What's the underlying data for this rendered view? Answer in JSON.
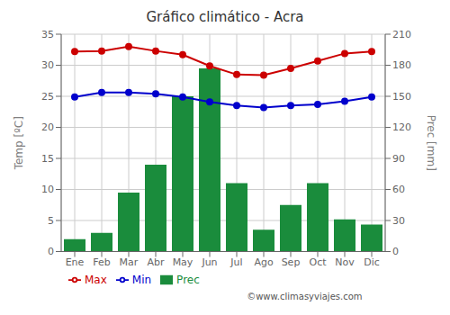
{
  "chart_data": {
    "type": "bar",
    "title": "Gráfico climático - Acra",
    "categories": [
      "Ene",
      "Feb",
      "Mar",
      "Abr",
      "May",
      "Jun",
      "Jul",
      "Ago",
      "Sep",
      "Oct",
      "Nov",
      "Dic"
    ],
    "series": [
      {
        "name": "Prec",
        "type": "bar",
        "axis": "y2",
        "color": "#1a8c3c",
        "values": [
          12,
          18,
          57,
          84,
          150,
          177,
          66,
          21,
          45,
          66,
          31,
          26
        ]
      },
      {
        "name": "Min",
        "type": "line",
        "color": "#0000cc",
        "marker": "circle",
        "values": [
          24.9,
          25.6,
          25.6,
          25.4,
          24.9,
          24.1,
          23.5,
          23.2,
          23.5,
          23.7,
          24.2,
          24.9
        ]
      },
      {
        "name": "Max",
        "type": "line",
        "color": "#cc0000",
        "marker": "circle",
        "values": [
          32.2,
          32.3,
          33.0,
          32.3,
          31.7,
          29.9,
          28.5,
          28.4,
          29.5,
          30.7,
          31.9,
          32.2
        ]
      }
    ],
    "ylabel": "Temp [ºC]",
    "y2label": "Prec [mm]",
    "ylim": [
      0,
      35
    ],
    "yticks": [
      0,
      5,
      10,
      15,
      20,
      25,
      30,
      35
    ],
    "y2lim": [
      0,
      210
    ],
    "y2ticks": [
      0,
      30,
      60,
      90,
      120,
      150,
      180,
      210
    ],
    "grid": true,
    "legend": "bottom",
    "annotations": [
      "©www.climasyviajes.com"
    ]
  }
}
